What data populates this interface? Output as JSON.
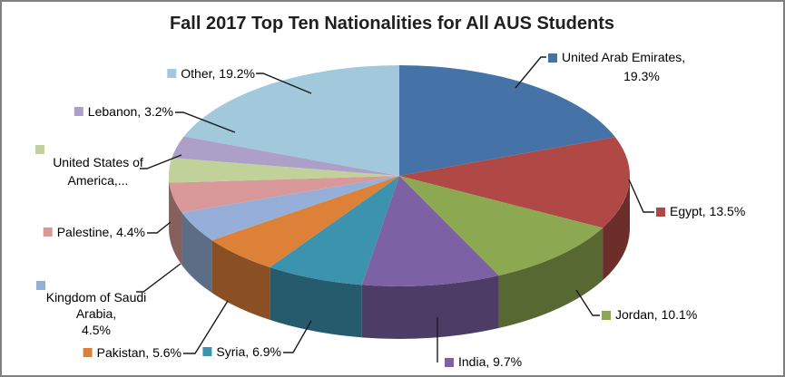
{
  "frame": {
    "background": "#FFFFFF",
    "border_color": "#7F7F7F"
  },
  "chart_data": {
    "type": "pie",
    "title": "Fall 2017 Top Ten Nationalities for All AUS Students",
    "style": "3d-pie",
    "legend_position": "callout-labels",
    "start_angle_deg": 0,
    "direction": "clockwise",
    "slices": [
      {
        "name": "United Arab Emirates",
        "value": 19.3,
        "color": "#4573A7",
        "label_lines": [
          "United Arab Emirates,",
          "19.3%"
        ]
      },
      {
        "name": "Egypt",
        "value": 13.5,
        "color": "#B04946",
        "label_lines": [
          "Egypt, 13.5%"
        ]
      },
      {
        "name": "Jordan",
        "value": 10.1,
        "color": "#8CA850",
        "label_lines": [
          "Jordan, 10.1%"
        ]
      },
      {
        "name": "India",
        "value": 9.7,
        "color": "#7C62A5",
        "label_lines": [
          "India, 9.7%"
        ]
      },
      {
        "name": "Syria",
        "value": 6.9,
        "color": "#3B93AE",
        "label_lines": [
          "Syria, 6.9%"
        ]
      },
      {
        "name": "Pakistan",
        "value": 5.6,
        "color": "#DE8138",
        "label_lines": [
          "Pakistan, 5.6%"
        ]
      },
      {
        "name": "Kingdom of Saudi Arabia",
        "value": 4.5,
        "color": "#95AFD8",
        "label_lines": [
          "Kingdom of Saudi",
          "Arabia,",
          "4.5%"
        ]
      },
      {
        "name": "Palestine",
        "value": 4.4,
        "color": "#D9999A",
        "label_lines": [
          "Palestine, 4.4%"
        ]
      },
      {
        "name": "United States of America",
        "value": 3.6,
        "color": "#C0D29A",
        "label_lines": [
          "United States of",
          "America,..."
        ]
      },
      {
        "name": "Lebanon",
        "value": 3.2,
        "color": "#AC9FC8",
        "label_lines": [
          "Lebanon, 3.2%"
        ]
      },
      {
        "name": "Other",
        "value": 19.2,
        "color": "#A2C8DC",
        "label_lines": [
          "Other, 19.2%"
        ]
      }
    ]
  }
}
